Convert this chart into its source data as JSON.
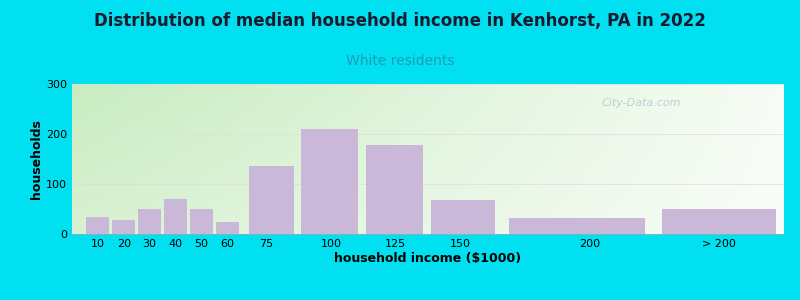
{
  "title": "Distribution of median household income in Kenhorst, PA in 2022",
  "subtitle": "White residents",
  "xlabel": "household income ($1000)",
  "ylabel": "households",
  "bar_color": "#c9b8d8",
  "bar_edgecolor": "none",
  "background_outer": "#00e0f0",
  "gradient_colors": [
    "#d0efce",
    "#eaf5e0",
    "#f5faec",
    "#f8fdf5",
    "#ffffff"
  ],
  "categories": [
    "10",
    "20",
    "30",
    "40",
    "50",
    "60",
    "75",
    "100",
    "125",
    "150",
    "200",
    "> 200"
  ],
  "values": [
    35,
    28,
    50,
    70,
    50,
    25,
    137,
    210,
    178,
    68,
    33,
    50
  ],
  "bar_left_edges": [
    5,
    15,
    25,
    35,
    45,
    55,
    67,
    87,
    112,
    137,
    165,
    225
  ],
  "bar_right_edges": [
    15,
    25,
    35,
    45,
    55,
    65,
    87,
    112,
    137,
    165,
    225,
    275
  ],
  "xtick_positions": [
    10,
    20,
    30,
    40,
    50,
    60,
    75,
    100,
    125,
    150,
    200,
    250
  ],
  "xtick_labels": [
    "10",
    "20",
    "30",
    "40",
    "50",
    "60",
    "75",
    "100",
    "125",
    "150",
    "200",
    "> 200"
  ],
  "ylim": [
    0,
    300
  ],
  "xlim": [
    0,
    275
  ],
  "yticks": [
    0,
    100,
    200,
    300
  ],
  "title_fontsize": 12,
  "subtitle_fontsize": 10,
  "subtitle_color": "#2299bb",
  "title_color": "#1a1a2e",
  "axis_label_fontsize": 9,
  "tick_fontsize": 8,
  "watermark": "City-Data.com",
  "watermark_color": "#b0c8d0",
  "grid_color": "#dddddd"
}
